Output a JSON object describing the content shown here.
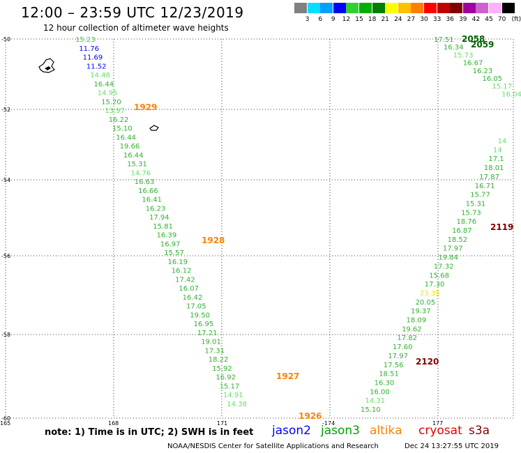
{
  "title": "12:00 – 23:59 UTC 12/23/2019",
  "subtitle": "12 hour collection of altimeter wave heights",
  "legend": {
    "ticks": [
      "3",
      "6",
      "9",
      "12",
      "15",
      "18",
      "21",
      "24",
      "27",
      "30",
      "33",
      "36",
      "39",
      "42",
      "45",
      "70"
    ],
    "unit": "(ft)",
    "colors": [
      "#808080",
      "#00e0ff",
      "#00a0ff",
      "#0000ff",
      "#30d030",
      "#00b000",
      "#008000",
      "#ffff00",
      "#ffc000",
      "#ff8000",
      "#ff0000",
      "#c00000",
      "#800000",
      "#a000a0",
      "#d060d0",
      "#ffb0ff",
      "#000000"
    ]
  },
  "map": {
    "lon_labels": [
      "165",
      "168",
      "171",
      "-174",
      "177"
    ],
    "lat_labels": [
      "-50",
      "-52",
      "-54",
      "-56",
      "-58",
      "-60"
    ]
  },
  "tracks": [
    {
      "points": [
        {
          "v": "15.23",
          "c": "#30d030"
        },
        {
          "v": "11.76",
          "c": "#0000ff"
        },
        {
          "v": "11.69",
          "c": "#0000ff"
        },
        {
          "v": "11.52",
          "c": "#0000ff"
        },
        {
          "v": "14.48",
          "c": "#66e066"
        },
        {
          "v": "16.44",
          "c": "#30b030"
        },
        {
          "v": "14.95",
          "c": "#66e066"
        },
        {
          "v": "15.20",
          "c": "#30b030"
        },
        {
          "v": "13.97",
          "c": "#66e066"
        },
        {
          "v": "16.22",
          "c": "#30b030"
        },
        {
          "v": "15.10",
          "c": "#30b030"
        },
        {
          "v": "16.44",
          "c": "#30b030"
        },
        {
          "v": "19.66",
          "c": "#30b030"
        },
        {
          "v": "16.44",
          "c": "#30b030"
        },
        {
          "v": "15.31",
          "c": "#30b030"
        },
        {
          "v": "14.76",
          "c": "#66e066"
        },
        {
          "v": "16.63",
          "c": "#30b030"
        },
        {
          "v": "16.66",
          "c": "#30b030"
        },
        {
          "v": "16.41",
          "c": "#30b030"
        },
        {
          "v": "16.23",
          "c": "#30b030"
        },
        {
          "v": "17.94",
          "c": "#30b030"
        },
        {
          "v": "15.81",
          "c": "#30b030"
        },
        {
          "v": "16.39",
          "c": "#30b030"
        },
        {
          "v": "16.97",
          "c": "#30b030"
        },
        {
          "v": "15.57",
          "c": "#30b030"
        },
        {
          "v": "16.19",
          "c": "#30b030"
        },
        {
          "v": "16.12",
          "c": "#30b030"
        },
        {
          "v": "17.42",
          "c": "#30b030"
        },
        {
          "v": "16.07",
          "c": "#30b030"
        },
        {
          "v": "16.42",
          "c": "#30b030"
        },
        {
          "v": "17.05",
          "c": "#30b030"
        },
        {
          "v": "19.50",
          "c": "#30b030"
        },
        {
          "v": "16.95",
          "c": "#30b030"
        },
        {
          "v": "17.21",
          "c": "#30b030"
        },
        {
          "v": "19.01",
          "c": "#30b030"
        },
        {
          "v": "17.31",
          "c": "#30b030"
        },
        {
          "v": "18.22",
          "c": "#30b030"
        },
        {
          "v": "15.92",
          "c": "#30b030"
        },
        {
          "v": "16.92",
          "c": "#30b030"
        },
        {
          "v": "15.17",
          "c": "#30b030"
        },
        {
          "v": "14.91",
          "c": "#66e066"
        },
        {
          "v": "14.38",
          "c": "#66e066"
        }
      ]
    },
    {
      "points": [
        {
          "v": "15.10",
          "c": "#30b030"
        },
        {
          "v": "14.31",
          "c": "#66e066"
        },
        {
          "v": "16.00",
          "c": "#30b030"
        },
        {
          "v": "16.30",
          "c": "#30b030"
        },
        {
          "v": "18.51",
          "c": "#30b030"
        },
        {
          "v": "17.56",
          "c": "#30b030"
        },
        {
          "v": "17.97",
          "c": "#30b030"
        },
        {
          "v": "17.60",
          "c": "#30b030"
        },
        {
          "v": "17.82",
          "c": "#30b030"
        },
        {
          "v": "19.62",
          "c": "#30b030"
        },
        {
          "v": "18.09",
          "c": "#30b030"
        },
        {
          "v": "19.37",
          "c": "#30b030"
        },
        {
          "v": "20.05",
          "c": "#30b030"
        },
        {
          "v": "23.35",
          "c": "#e8e800"
        },
        {
          "v": "17.30",
          "c": "#30b030"
        },
        {
          "v": "15.68",
          "c": "#30b030"
        },
        {
          "v": "17.32",
          "c": "#30b030"
        },
        {
          "v": "19.84",
          "c": "#30b030"
        },
        {
          "v": "17.97",
          "c": "#30b030"
        },
        {
          "v": "18.52",
          "c": "#30b030"
        },
        {
          "v": "16.87",
          "c": "#30b030"
        },
        {
          "v": "18.76",
          "c": "#30b030"
        },
        {
          "v": "15.73",
          "c": "#30b030"
        },
        {
          "v": "15.31",
          "c": "#30b030"
        },
        {
          "v": "15.77",
          "c": "#30b030"
        },
        {
          "v": "16.71",
          "c": "#30b030"
        },
        {
          "v": "17.87",
          "c": "#30b030"
        },
        {
          "v": "18.01",
          "c": "#30b030"
        },
        {
          "v": "17.1",
          "c": "#30b030"
        },
        {
          "v": "14",
          "c": "#66e066"
        },
        {
          "v": "14",
          "c": "#66e066"
        }
      ]
    },
    {
      "points": [
        {
          "v": "17.51",
          "c": "#30b030"
        },
        {
          "v": "16.34",
          "c": "#30b030"
        },
        {
          "v": "15.73",
          "c": "#66e066"
        },
        {
          "v": "16.67",
          "c": "#30b030"
        },
        {
          "v": "16.23",
          "c": "#30b030"
        },
        {
          "v": "16.05",
          "c": "#30b030"
        },
        {
          "v": "15.17",
          "c": "#66e066"
        },
        {
          "v": "16.04",
          "c": "#66e066"
        }
      ]
    }
  ],
  "orbits": [
    {
      "label": "1929",
      "c": "#ff8000"
    },
    {
      "label": "1928",
      "c": "#ff8000"
    },
    {
      "label": "1927",
      "c": "#ff8000"
    },
    {
      "label": "1926",
      "c": "#ff8000"
    },
    {
      "label": "2120",
      "c": "#800000"
    },
    {
      "label": "2119",
      "c": "#800000"
    },
    {
      "label": "2058",
      "c": "#006000"
    },
    {
      "label": "2059",
      "c": "#006000"
    }
  ],
  "footer": {
    "note": "note:  1) Time is in UTC;  2) SWH is in feet",
    "missions": [
      {
        "label": "jason2",
        "c": "#0000ff"
      },
      {
        "label": "jason3",
        "c": "#00a000"
      },
      {
        "label": "altika",
        "c": "#ff8000"
      },
      {
        "label": "cryosat",
        "c": "#e00000"
      },
      {
        "label": "s3a",
        "c": "#800000"
      }
    ],
    "credit": "NOAA/NESDIS Center for Satellite Applications and Research",
    "timestamp": "Dec 24 13:27:55 UTC 2019"
  }
}
